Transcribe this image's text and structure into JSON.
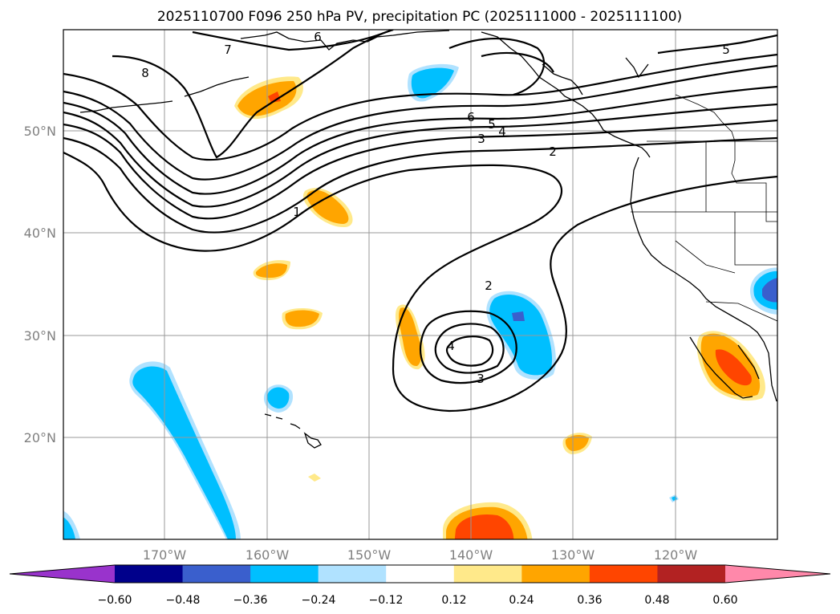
{
  "title": "2025110700 F096 250 hPa PV, precipitation PC (2025111000 - 2025111100)",
  "longitude_ticks": [
    "170°W",
    "160°W",
    "150°W",
    "140°W",
    "130°W",
    "120°W"
  ],
  "latitude_ticks": [
    "50°N",
    "40°N",
    "30°N",
    "20°N"
  ],
  "colorbar": {
    "ticks": [
      "−0.60",
      "−0.48",
      "−0.36",
      "−0.24",
      "−0.12",
      "0.12",
      "0.24",
      "0.36",
      "0.48",
      "0.60"
    ],
    "colors": [
      "#9933cc",
      "#00008b",
      "#3a5fcd",
      "#00bfff",
      "#b0e2ff",
      "#ffffff",
      "#ffe98a",
      "#ffa500",
      "#ff4500",
      "#b22222",
      "#ff88aa"
    ]
  },
  "pv_contour_labels": [
    "8",
    "7",
    "6",
    "6",
    "5",
    "5",
    "4",
    "3",
    "2",
    "1",
    "2",
    "3",
    "4"
  ]
}
